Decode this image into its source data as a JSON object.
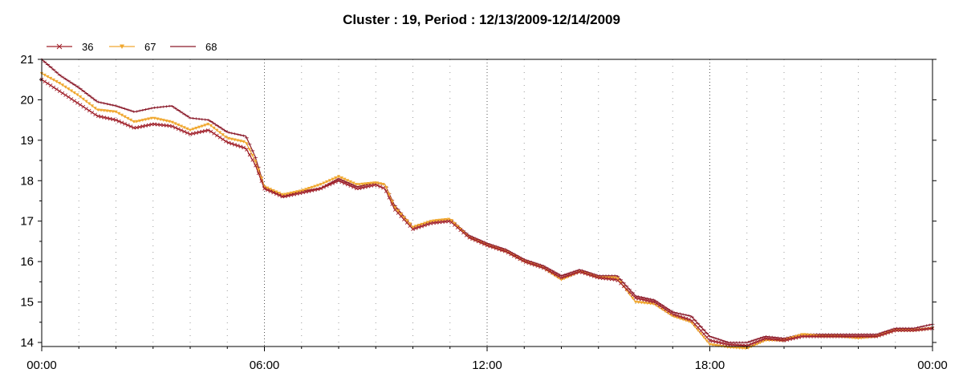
{
  "chart_data": {
    "type": "line",
    "title": "Cluster : 19, Period : 12/13/2009-12/14/2009",
    "xlabel": "",
    "ylabel": "",
    "xlim": [
      "00:00",
      "24:00"
    ],
    "ylim": [
      13.9,
      21
    ],
    "x_tick_labels": [
      "00:00",
      "06:00",
      "12:00",
      "18:00",
      "00:00"
    ],
    "y_tick_labels": [
      "14",
      "15",
      "16",
      "17",
      "18",
      "19",
      "20",
      "21"
    ],
    "y_ticks": [
      14,
      15,
      16,
      17,
      18,
      19,
      20,
      21
    ],
    "grid": "vertical dotted every 1 hour, denser at 6-hour marks",
    "legend_position": "top-left",
    "series": [
      {
        "name": "36",
        "color": "#a0202a",
        "marker": "x",
        "x_hours": [
          0,
          0.5,
          1,
          1.5,
          2,
          2.5,
          3,
          3.5,
          4,
          4.5,
          5,
          5.5,
          5.75,
          6,
          6.5,
          7,
          7.5,
          8,
          8.5,
          9,
          9.25,
          9.5,
          10,
          10.5,
          11,
          11.5,
          12,
          12.5,
          13,
          13.5,
          14,
          14.5,
          15,
          15.5,
          16,
          16.5,
          17,
          17.5,
          18,
          18.5,
          19,
          19.5,
          20,
          20.5,
          21,
          21.5,
          22,
          22.5,
          23,
          23.5,
          24
        ],
        "y": [
          20.5,
          20.2,
          19.9,
          19.6,
          19.5,
          19.3,
          19.4,
          19.35,
          19.15,
          19.25,
          18.95,
          18.8,
          18.4,
          17.8,
          17.6,
          17.7,
          17.8,
          18.0,
          17.8,
          17.9,
          17.8,
          17.3,
          16.8,
          16.95,
          17.0,
          16.6,
          16.4,
          16.25,
          16.0,
          15.85,
          15.6,
          15.75,
          15.6,
          15.55,
          15.1,
          15.0,
          14.7,
          14.55,
          14.05,
          13.95,
          13.92,
          14.1,
          14.05,
          14.15,
          14.15,
          14.15,
          14.15,
          14.15,
          14.3,
          14.3,
          14.35
        ]
      },
      {
        "name": "67",
        "color": "#f0a830",
        "marker": "triangle",
        "x_hours": [
          0,
          0.5,
          1,
          1.5,
          2,
          2.5,
          3,
          3.5,
          4,
          4.5,
          5,
          5.5,
          5.75,
          6,
          6.5,
          7,
          7.5,
          8,
          8.5,
          9,
          9.25,
          9.5,
          10,
          10.5,
          11,
          11.5,
          12,
          12.5,
          13,
          13.5,
          14,
          14.5,
          15,
          15.5,
          16,
          16.5,
          17,
          17.5,
          18,
          18.5,
          19,
          19.5,
          20,
          20.5,
          21,
          21.5,
          22,
          22.5,
          23,
          23.5,
          24
        ],
        "y": [
          20.65,
          20.4,
          20.1,
          19.75,
          19.7,
          19.45,
          19.55,
          19.45,
          19.25,
          19.4,
          19.05,
          18.95,
          18.5,
          17.85,
          17.65,
          17.75,
          17.9,
          18.1,
          17.9,
          17.95,
          17.9,
          17.35,
          16.85,
          17.0,
          17.05,
          16.6,
          16.4,
          16.25,
          16.0,
          15.85,
          15.55,
          15.75,
          15.6,
          15.6,
          15.0,
          14.95,
          14.65,
          14.5,
          13.95,
          13.88,
          13.85,
          14.05,
          14.05,
          14.2,
          14.15,
          14.15,
          14.1,
          14.15,
          14.3,
          14.3,
          14.35
        ]
      },
      {
        "name": "68",
        "color": "#8a1a2a",
        "marker": "plus",
        "x_hours": [
          0,
          0.5,
          1,
          1.5,
          2,
          2.5,
          3,
          3.5,
          4,
          4.5,
          5,
          5.5,
          5.75,
          6,
          6.5,
          7,
          7.5,
          8,
          8.5,
          9,
          9.25,
          9.5,
          10,
          10.5,
          11,
          11.5,
          12,
          12.5,
          13,
          13.5,
          14,
          14.5,
          15,
          15.5,
          16,
          16.5,
          17,
          17.5,
          18,
          18.5,
          19,
          19.5,
          20,
          20.5,
          21,
          21.5,
          22,
          22.5,
          23,
          23.5,
          24
        ],
        "y": [
          21.0,
          20.6,
          20.3,
          19.95,
          19.85,
          19.7,
          19.8,
          19.85,
          19.55,
          19.5,
          19.2,
          19.1,
          18.6,
          17.85,
          17.6,
          17.75,
          17.8,
          18.05,
          17.85,
          17.95,
          17.9,
          17.4,
          16.85,
          17.0,
          17.05,
          16.65,
          16.45,
          16.3,
          16.05,
          15.9,
          15.65,
          15.8,
          15.65,
          15.65,
          15.15,
          15.05,
          14.75,
          14.65,
          14.15,
          14.0,
          14.0,
          14.15,
          14.1,
          14.2,
          14.2,
          14.2,
          14.2,
          14.2,
          14.35,
          14.35,
          14.45
        ]
      }
    ]
  }
}
